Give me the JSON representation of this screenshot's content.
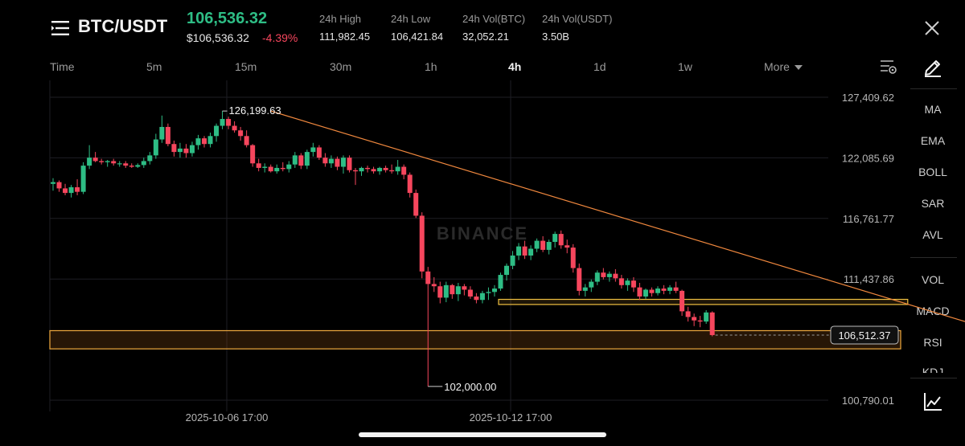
{
  "header": {
    "pair": "BTC/USDT",
    "last_price": "106,536.32",
    "last_price_usd": "$106,536.32",
    "change_pct": "-4.39%",
    "stats": [
      {
        "label": "24h High",
        "value": "111,982.45"
      },
      {
        "label": "24h Low",
        "value": "106,421.84"
      },
      {
        "label": "24h Vol(BTC)",
        "value": "32,052.21"
      },
      {
        "label": "24h Vol(USDT)",
        "value": "3.50B"
      }
    ],
    "icons": {
      "menu": "menu-icon",
      "close": "close-icon"
    }
  },
  "timeframes": [
    "Time",
    "5m",
    "15m",
    "30m",
    "1h",
    "4h",
    "1d",
    "1w",
    "More"
  ],
  "active_timeframe": "4h",
  "tools": {
    "indicators_main": [
      "MA",
      "EMA",
      "BOLL",
      "SAR",
      "AVL"
    ],
    "indicators_sub": [
      "VOL",
      "MACD",
      "RSI",
      "KDJ"
    ],
    "icons": {
      "draw": "pencil-icon",
      "settings": "settings-icon",
      "fullscreen_chart": "chart-icon"
    }
  },
  "colors": {
    "up": "#2ebd85",
    "down": "#f6465d",
    "trendline": "#f0883e",
    "zone": "#f0a93e",
    "grid": "#1e1e24",
    "accent_text": "#2ebd85"
  },
  "watermark": "BINANCE",
  "chart_data": {
    "type": "candlestick",
    "interval": "4h",
    "x_ticks": [
      "2025-10-06 17:00",
      "2025-10-12 17:00"
    ],
    "y_ticks": [
      127409.62,
      122085.69,
      116761.77,
      111437.86,
      100790.01
    ],
    "y_tick_labels": [
      "127,409.62",
      "122,085.69",
      "116,761.77",
      "111,437.86",
      "100,790.01"
    ],
    "ylim": [
      100200,
      129200
    ],
    "current_price": 106512.37,
    "current_price_label": "106,512.37",
    "annotations": {
      "high_label": "126,199.63",
      "high_value": 126199.63,
      "low_label": "102,000.00",
      "low_value": 102000.0
    },
    "drawings": {
      "trendline": {
        "from_candle": 36,
        "from_price": 126199.63,
        "to_candle": 157,
        "to_price": 106700
      },
      "support_zone_upper": {
        "from_candle": 75,
        "to_candle": 140,
        "low": 109200,
        "high": 109650
      },
      "support_zone_lower": {
        "low": 105300,
        "high": 106900
      }
    },
    "candles": [
      {
        "o": 119800,
        "h": 120300,
        "l": 119200,
        "c": 119950
      },
      {
        "o": 119950,
        "h": 120100,
        "l": 119100,
        "c": 119400
      },
      {
        "o": 119400,
        "h": 119800,
        "l": 118800,
        "c": 119000
      },
      {
        "o": 119000,
        "h": 119700,
        "l": 118600,
        "c": 119500
      },
      {
        "o": 119500,
        "h": 120200,
        "l": 118800,
        "c": 119100
      },
      {
        "o": 119100,
        "h": 121700,
        "l": 118900,
        "c": 121400
      },
      {
        "o": 121400,
        "h": 123200,
        "l": 121100,
        "c": 122100
      },
      {
        "o": 122100,
        "h": 122600,
        "l": 121700,
        "c": 121800
      },
      {
        "o": 121800,
        "h": 122000,
        "l": 121500,
        "c": 121700
      },
      {
        "o": 121700,
        "h": 121900,
        "l": 121300,
        "c": 121800
      },
      {
        "o": 121800,
        "h": 122000,
        "l": 121400,
        "c": 121600
      },
      {
        "o": 121600,
        "h": 121800,
        "l": 121300,
        "c": 121600
      },
      {
        "o": 121600,
        "h": 121800,
        "l": 121200,
        "c": 121400
      },
      {
        "o": 121400,
        "h": 121600,
        "l": 121200,
        "c": 121300
      },
      {
        "o": 121300,
        "h": 121600,
        "l": 121200,
        "c": 121450
      },
      {
        "o": 121450,
        "h": 122100,
        "l": 121200,
        "c": 121800
      },
      {
        "o": 121800,
        "h": 122600,
        "l": 121500,
        "c": 122300
      },
      {
        "o": 122300,
        "h": 124200,
        "l": 122000,
        "c": 123700
      },
      {
        "o": 123700,
        "h": 125800,
        "l": 123400,
        "c": 124800
      },
      {
        "o": 124800,
        "h": 125100,
        "l": 123100,
        "c": 123300
      },
      {
        "o": 123300,
        "h": 123600,
        "l": 122200,
        "c": 122600
      },
      {
        "o": 122600,
        "h": 123400,
        "l": 122100,
        "c": 122900
      },
      {
        "o": 122900,
        "h": 123300,
        "l": 122100,
        "c": 122500
      },
      {
        "o": 122500,
        "h": 123500,
        "l": 122200,
        "c": 123200
      },
      {
        "o": 123200,
        "h": 124100,
        "l": 122800,
        "c": 123800
      },
      {
        "o": 123800,
        "h": 124000,
        "l": 123000,
        "c": 123300
      },
      {
        "o": 123300,
        "h": 124300,
        "l": 123000,
        "c": 124000
      },
      {
        "o": 124000,
        "h": 125100,
        "l": 123500,
        "c": 124900
      },
      {
        "o": 124900,
        "h": 126199.63,
        "l": 124600,
        "c": 125500
      },
      {
        "o": 125500,
        "h": 125700,
        "l": 124600,
        "c": 124900
      },
      {
        "o": 124900,
        "h": 125300,
        "l": 124300,
        "c": 124500
      },
      {
        "o": 124500,
        "h": 124800,
        "l": 123600,
        "c": 124000
      },
      {
        "o": 124000,
        "h": 124500,
        "l": 123000,
        "c": 123200
      },
      {
        "o": 123200,
        "h": 123300,
        "l": 121300,
        "c": 121600
      },
      {
        "o": 121600,
        "h": 122000,
        "l": 120900,
        "c": 121200
      },
      {
        "o": 121200,
        "h": 121600,
        "l": 120800,
        "c": 121300
      },
      {
        "o": 121300,
        "h": 121500,
        "l": 120800,
        "c": 120900
      },
      {
        "o": 120900,
        "h": 121500,
        "l": 120700,
        "c": 121200
      },
      {
        "o": 121200,
        "h": 121700,
        "l": 120900,
        "c": 121100
      },
      {
        "o": 121100,
        "h": 121800,
        "l": 120800,
        "c": 121500
      },
      {
        "o": 121500,
        "h": 122600,
        "l": 121200,
        "c": 122300
      },
      {
        "o": 122300,
        "h": 122500,
        "l": 121100,
        "c": 121400
      },
      {
        "o": 121400,
        "h": 122800,
        "l": 121100,
        "c": 122600
      },
      {
        "o": 122600,
        "h": 123400,
        "l": 122200,
        "c": 123000
      },
      {
        "o": 123000,
        "h": 123200,
        "l": 121900,
        "c": 122100
      },
      {
        "o": 122100,
        "h": 122500,
        "l": 121300,
        "c": 121600
      },
      {
        "o": 121600,
        "h": 122300,
        "l": 121200,
        "c": 122000
      },
      {
        "o": 122000,
        "h": 122200,
        "l": 121000,
        "c": 121300
      },
      {
        "o": 121300,
        "h": 122300,
        "l": 120700,
        "c": 122100
      },
      {
        "o": 122100,
        "h": 122300,
        "l": 120800,
        "c": 121000
      },
      {
        "o": 121000,
        "h": 121200,
        "l": 119700,
        "c": 120900
      },
      {
        "o": 120900,
        "h": 121300,
        "l": 120500,
        "c": 121200
      },
      {
        "o": 121200,
        "h": 121400,
        "l": 120800,
        "c": 121100
      },
      {
        "o": 121100,
        "h": 121300,
        "l": 120700,
        "c": 120900
      },
      {
        "o": 120900,
        "h": 121300,
        "l": 120600,
        "c": 121200
      },
      {
        "o": 121200,
        "h": 121400,
        "l": 120800,
        "c": 121000
      },
      {
        "o": 121000,
        "h": 121500,
        "l": 120700,
        "c": 120900
      },
      {
        "o": 120900,
        "h": 121900,
        "l": 120600,
        "c": 121300
      },
      {
        "o": 121300,
        "h": 121500,
        "l": 120200,
        "c": 120600
      },
      {
        "o": 120600,
        "h": 120800,
        "l": 118600,
        "c": 119000
      },
      {
        "o": 119000,
        "h": 119300,
        "l": 116800,
        "c": 117000
      },
      {
        "o": 117000,
        "h": 117300,
        "l": 111500,
        "c": 112100
      },
      {
        "o": 112100,
        "h": 112500,
        "l": 102000,
        "c": 111000
      },
      {
        "o": 111000,
        "h": 111600,
        "l": 110300,
        "c": 110800
      },
      {
        "o": 110800,
        "h": 111200,
        "l": 109300,
        "c": 109800
      },
      {
        "o": 109800,
        "h": 111200,
        "l": 109400,
        "c": 110900
      },
      {
        "o": 110900,
        "h": 111000,
        "l": 109700,
        "c": 110100
      },
      {
        "o": 110100,
        "h": 111100,
        "l": 109500,
        "c": 110800
      },
      {
        "o": 110800,
        "h": 111000,
        "l": 110000,
        "c": 110500
      },
      {
        "o": 110500,
        "h": 110800,
        "l": 109700,
        "c": 109900
      },
      {
        "o": 109900,
        "h": 110200,
        "l": 109300,
        "c": 109600
      },
      {
        "o": 109600,
        "h": 110400,
        "l": 109300,
        "c": 110200
      },
      {
        "o": 110200,
        "h": 110700,
        "l": 109600,
        "c": 110300
      },
      {
        "o": 110300,
        "h": 110900,
        "l": 109900,
        "c": 110600
      },
      {
        "o": 110600,
        "h": 112000,
        "l": 110400,
        "c": 111800
      },
      {
        "o": 111800,
        "h": 112800,
        "l": 111300,
        "c": 112600
      },
      {
        "o": 112600,
        "h": 113900,
        "l": 112300,
        "c": 113500
      },
      {
        "o": 113500,
        "h": 114600,
        "l": 113100,
        "c": 114300
      },
      {
        "o": 114300,
        "h": 114800,
        "l": 113200,
        "c": 113500
      },
      {
        "o": 113500,
        "h": 114400,
        "l": 113100,
        "c": 114100
      },
      {
        "o": 114100,
        "h": 115000,
        "l": 113800,
        "c": 114800
      },
      {
        "o": 114800,
        "h": 115200,
        "l": 113800,
        "c": 114000
      },
      {
        "o": 114000,
        "h": 114900,
        "l": 113600,
        "c": 114700
      },
      {
        "o": 114700,
        "h": 115600,
        "l": 114200,
        "c": 115400
      },
      {
        "o": 115400,
        "h": 115700,
        "l": 114100,
        "c": 114400
      },
      {
        "o": 114400,
        "h": 114900,
        "l": 113700,
        "c": 114200
      },
      {
        "o": 114200,
        "h": 114500,
        "l": 112000,
        "c": 112400
      },
      {
        "o": 112400,
        "h": 112800,
        "l": 110000,
        "c": 110400
      },
      {
        "o": 110400,
        "h": 111000,
        "l": 109900,
        "c": 110700
      },
      {
        "o": 110700,
        "h": 111400,
        "l": 110300,
        "c": 111200
      },
      {
        "o": 111200,
        "h": 112200,
        "l": 110900,
        "c": 112000
      },
      {
        "o": 112000,
        "h": 112400,
        "l": 111400,
        "c": 111600
      },
      {
        "o": 111600,
        "h": 112100,
        "l": 111200,
        "c": 111900
      },
      {
        "o": 111900,
        "h": 112300,
        "l": 111200,
        "c": 111500
      },
      {
        "o": 111500,
        "h": 111800,
        "l": 110600,
        "c": 110900
      },
      {
        "o": 110900,
        "h": 111500,
        "l": 110400,
        "c": 111300
      },
      {
        "o": 111300,
        "h": 111600,
        "l": 110300,
        "c": 110700
      },
      {
        "o": 110700,
        "h": 111100,
        "l": 109600,
        "c": 109900
      },
      {
        "o": 109900,
        "h": 110600,
        "l": 109700,
        "c": 110500
      },
      {
        "o": 110500,
        "h": 110700,
        "l": 109900,
        "c": 110200
      },
      {
        "o": 110200,
        "h": 110800,
        "l": 110000,
        "c": 110600
      },
      {
        "o": 110600,
        "h": 110900,
        "l": 110100,
        "c": 110400
      },
      {
        "o": 110400,
        "h": 110900,
        "l": 110100,
        "c": 110700
      },
      {
        "o": 110700,
        "h": 111200,
        "l": 110200,
        "c": 110400
      },
      {
        "o": 110400,
        "h": 110500,
        "l": 108200,
        "c": 108600
      },
      {
        "o": 108600,
        "h": 109000,
        "l": 107700,
        "c": 108100
      },
      {
        "o": 108100,
        "h": 108400,
        "l": 107300,
        "c": 107800
      },
      {
        "o": 107800,
        "h": 108200,
        "l": 107200,
        "c": 107700
      },
      {
        "o": 107700,
        "h": 108700,
        "l": 107500,
        "c": 108500
      },
      {
        "o": 108500,
        "h": 108600,
        "l": 106400,
        "c": 106512
      }
    ]
  }
}
